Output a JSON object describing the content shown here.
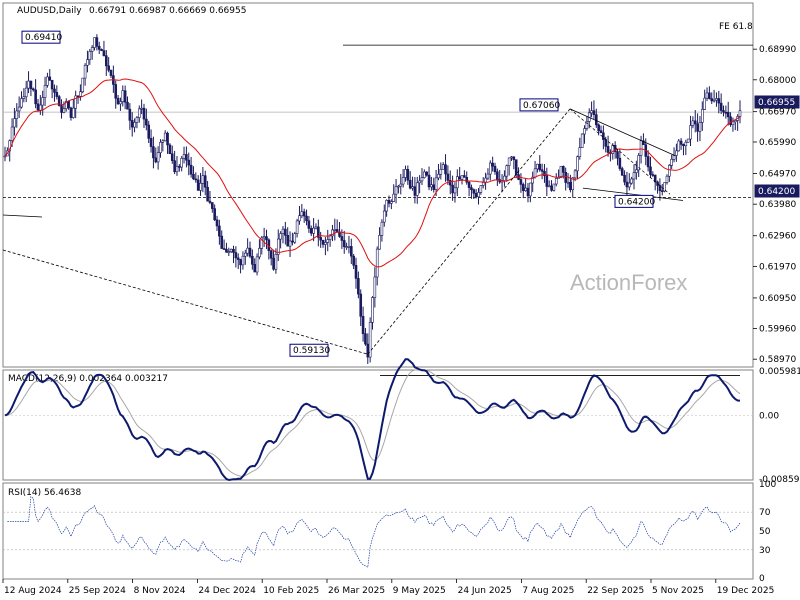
{
  "chart_data": [
    {
      "type": "candlestick",
      "title": "AUDUSD,Daily",
      "ohlc_values": "0.66791 0.66987 0.66669 0.66955",
      "ylim": [
        0.5875,
        0.7045
      ],
      "y_ticks": [
        "0.68990",
        "0.68000",
        "0.66970",
        "0.65990",
        "0.64970",
        "0.63980",
        "0.62960",
        "0.61970",
        "0.60950",
        "0.59960",
        "0.58970"
      ],
      "x_ticks": [
        "12 Aug 2024",
        "25 Sep 2024",
        "8 Nov 2024",
        "24 Dec 2024",
        "10 Feb 2025",
        "26 Mar 2025",
        "9 May 2025",
        "24 Jun 2025",
        "7 Aug 2025",
        "22 Sep 2025",
        "5 Nov 2025",
        "19 Dec 2025"
      ],
      "current_price": "0.66955",
      "support_price": "0.64200",
      "fe_label": "FE 61.8",
      "fe_price": 0.6912,
      "annotations": [
        {
          "label": "0.69410",
          "value": 0.6941
        },
        {
          "label": "0.59130",
          "value": 0.5913
        },
        {
          "label": "0.67060",
          "value": 0.6706
        },
        {
          "label": "0.64200",
          "value": 0.642
        }
      ],
      "closes": [
        0.655,
        0.66,
        0.667,
        0.672,
        0.674,
        0.679,
        0.676,
        0.67,
        0.675,
        0.68,
        0.678,
        0.674,
        0.67,
        0.672,
        0.668,
        0.674,
        0.677,
        0.685,
        0.688,
        0.693,
        0.69,
        0.687,
        0.683,
        0.678,
        0.672,
        0.676,
        0.67,
        0.665,
        0.668,
        0.671,
        0.666,
        0.658,
        0.654,
        0.66,
        0.662,
        0.656,
        0.65,
        0.653,
        0.656,
        0.652,
        0.648,
        0.645,
        0.648,
        0.642,
        0.638,
        0.632,
        0.626,
        0.623,
        0.626,
        0.622,
        0.62,
        0.625,
        0.624,
        0.618,
        0.626,
        0.63,
        0.625,
        0.62,
        0.628,
        0.631,
        0.626,
        0.628,
        0.635,
        0.637,
        0.634,
        0.63,
        0.632,
        0.628,
        0.627,
        0.63,
        0.632,
        0.63,
        0.627,
        0.625,
        0.62,
        0.61,
        0.598,
        0.5913,
        0.61,
        0.625,
        0.635,
        0.642,
        0.64,
        0.645,
        0.647,
        0.65,
        0.646,
        0.643,
        0.648,
        0.65,
        0.646,
        0.645,
        0.65,
        0.652,
        0.647,
        0.644,
        0.648,
        0.65,
        0.647,
        0.644,
        0.642,
        0.646,
        0.648,
        0.652,
        0.65,
        0.646,
        0.65,
        0.655,
        0.653,
        0.648,
        0.645,
        0.643,
        0.648,
        0.652,
        0.65,
        0.646,
        0.644,
        0.648,
        0.651,
        0.648,
        0.645,
        0.65,
        0.658,
        0.665,
        0.67,
        0.668,
        0.664,
        0.66,
        0.656,
        0.658,
        0.654,
        0.65,
        0.646,
        0.648,
        0.652,
        0.66,
        0.656,
        0.65,
        0.647,
        0.644,
        0.646,
        0.652,
        0.656,
        0.66,
        0.658,
        0.662,
        0.666,
        0.664,
        0.67,
        0.676,
        0.672,
        0.674,
        0.67,
        0.669,
        0.666,
        0.668,
        0.67
      ]
    },
    {
      "type": "line",
      "title": "MACD(12,26,9) 0.002364 0.003217",
      "ylim": [
        -0.0086,
        0.006
      ],
      "y_ticks": [
        "0.005981",
        "0.00",
        "-0.00859"
      ]
    },
    {
      "type": "line",
      "title": "RSI(14) 56.4638",
      "ylim": [
        0,
        100
      ],
      "y_ticks": [
        "100",
        "70",
        "50",
        "30",
        "0"
      ]
    }
  ],
  "watermark": "ActionForex",
  "colors": {
    "candle": "#1a1a5e",
    "ma": "#e01010",
    "macd_main": "#0d1a6e",
    "macd_signal": "#a8a8a8",
    "rsi": "#1a3aa0",
    "grid": "#a0a0a0"
  }
}
